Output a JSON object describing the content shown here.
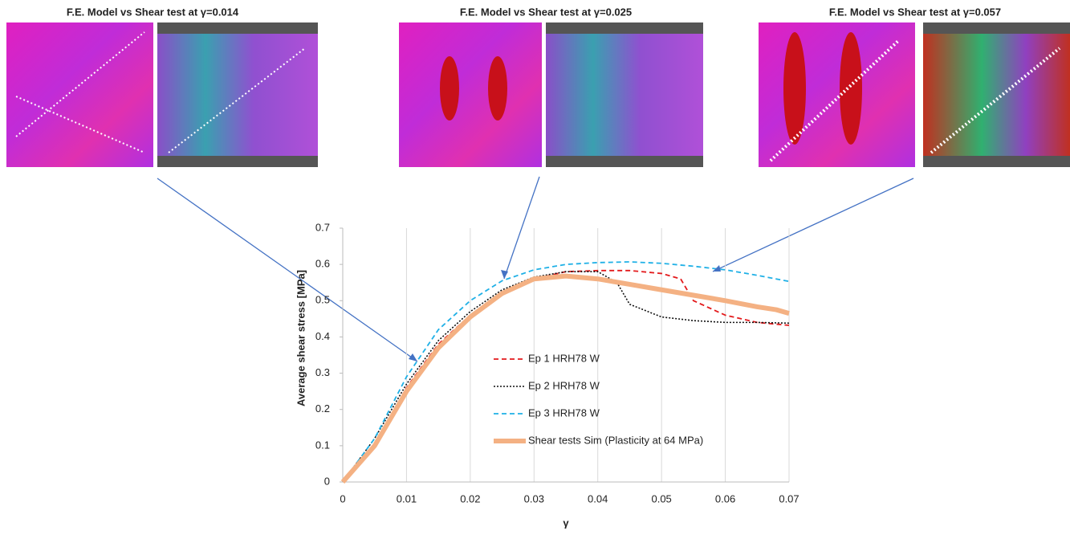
{
  "chart_data": {
    "type": "line",
    "panels": [
      {
        "title": "F.E. Model vs Shear test at γ=0.014"
      },
      {
        "title": "F.E. Model vs Shear test at γ=0.025"
      },
      {
        "title": "F.E. Model vs Shear test at γ=0.057"
      }
    ],
    "xlabel": "γ",
    "ylabel": "Average shear stress [MPa]",
    "xlim": [
      0,
      0.07
    ],
    "ylim": [
      0,
      0.7
    ],
    "xticks": [
      0,
      0.01,
      0.02,
      0.03,
      0.04,
      0.05,
      0.06,
      0.07
    ],
    "yticks": [
      0,
      0.1,
      0.2,
      0.3,
      0.4,
      0.5,
      0.6,
      0.7
    ],
    "grid": true,
    "series": [
      {
        "name": "Ep 1 HRH78 W",
        "color": "#e31a1c",
        "style": "dashed",
        "x": [
          0,
          0.005,
          0.01,
          0.015,
          0.02,
          0.025,
          0.03,
          0.035,
          0.04,
          0.045,
          0.05,
          0.053,
          0.055,
          0.06,
          0.065,
          0.07
        ],
        "values": [
          0,
          0.1,
          0.26,
          0.38,
          0.46,
          0.52,
          0.56,
          0.58,
          0.583,
          0.583,
          0.575,
          0.56,
          0.5,
          0.46,
          0.44,
          0.432
        ]
      },
      {
        "name": "Ep 2 HRH78 W",
        "color": "#111111",
        "style": "dotted",
        "x": [
          0,
          0.005,
          0.01,
          0.015,
          0.02,
          0.025,
          0.03,
          0.035,
          0.04,
          0.043,
          0.045,
          0.05,
          0.055,
          0.06,
          0.065,
          0.07
        ],
        "values": [
          0,
          0.12,
          0.27,
          0.39,
          0.47,
          0.53,
          0.565,
          0.58,
          0.58,
          0.55,
          0.49,
          0.455,
          0.445,
          0.44,
          0.44,
          0.438
        ]
      },
      {
        "name": "Ep 3 HRH78 W",
        "color": "#1fb0e6",
        "style": "dashed",
        "x": [
          0,
          0.005,
          0.01,
          0.015,
          0.02,
          0.025,
          0.03,
          0.035,
          0.04,
          0.045,
          0.05,
          0.055,
          0.06,
          0.065,
          0.07
        ],
        "values": [
          0,
          0.12,
          0.29,
          0.42,
          0.5,
          0.555,
          0.585,
          0.6,
          0.605,
          0.607,
          0.603,
          0.595,
          0.585,
          0.57,
          0.553
        ]
      },
      {
        "name": "Shear tests Sim (Plasticity at 64 MPa)",
        "color": "#f4b183",
        "style": "thick",
        "x": [
          0,
          0.005,
          0.01,
          0.015,
          0.02,
          0.025,
          0.03,
          0.035,
          0.04,
          0.045,
          0.05,
          0.055,
          0.06,
          0.065,
          0.068,
          0.07
        ],
        "values": [
          0,
          0.1,
          0.25,
          0.37,
          0.455,
          0.52,
          0.56,
          0.568,
          0.56,
          0.545,
          0.53,
          0.515,
          0.5,
          0.483,
          0.475,
          0.465
        ]
      }
    ]
  }
}
